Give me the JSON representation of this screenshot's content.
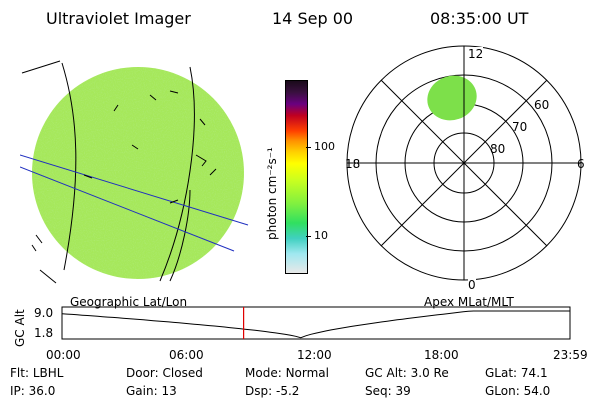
{
  "header": {
    "title": "Ultraviolet Imager",
    "date": "14 Sep 00",
    "time": "08:35:00 UT"
  },
  "colorbar": {
    "label": "photon cm⁻²s⁻¹",
    "ticks": [
      "100",
      "10"
    ]
  },
  "polar_plot": {
    "mlt_labels": {
      "top": "12",
      "left": "18",
      "right": "6",
      "bottom": "0"
    },
    "lat_labels": [
      "60",
      "70",
      "80"
    ]
  },
  "timeline": {
    "left_label": "Geographic Lat/Lon",
    "right_label": "Apex MLat/MLT",
    "axis_title": "GC Alt",
    "y_ticks": [
      "9.0",
      "1.8"
    ],
    "x_ticks": [
      "00:00",
      "06:00",
      "12:00",
      "18:00",
      "23:59"
    ],
    "current_time_hours": 8.58
  },
  "info": {
    "row1": [
      {
        "key": "Flt:",
        "value": "LBHL"
      },
      {
        "key": "Door:",
        "value": "Closed"
      },
      {
        "key": "Mode:",
        "value": "Normal"
      },
      {
        "key": "GC Alt:",
        "value": "3.0 Re"
      },
      {
        "key": "GLat:",
        "value": "74.1"
      }
    ],
    "row2": [
      {
        "key": "IP:",
        "value": "36.0"
      },
      {
        "key": "Gain:",
        "value": "13"
      },
      {
        "key": "Dsp:",
        "value": "-5.2"
      },
      {
        "key": "Seq:",
        "value": "39"
      },
      {
        "key": "GLon:",
        "value": "54.0"
      }
    ]
  },
  "colors": {
    "earth_fill": "#a6e85a",
    "aurora_fill": "#7de04a",
    "marker": "#e00000",
    "grid_line": "#2030c0"
  }
}
